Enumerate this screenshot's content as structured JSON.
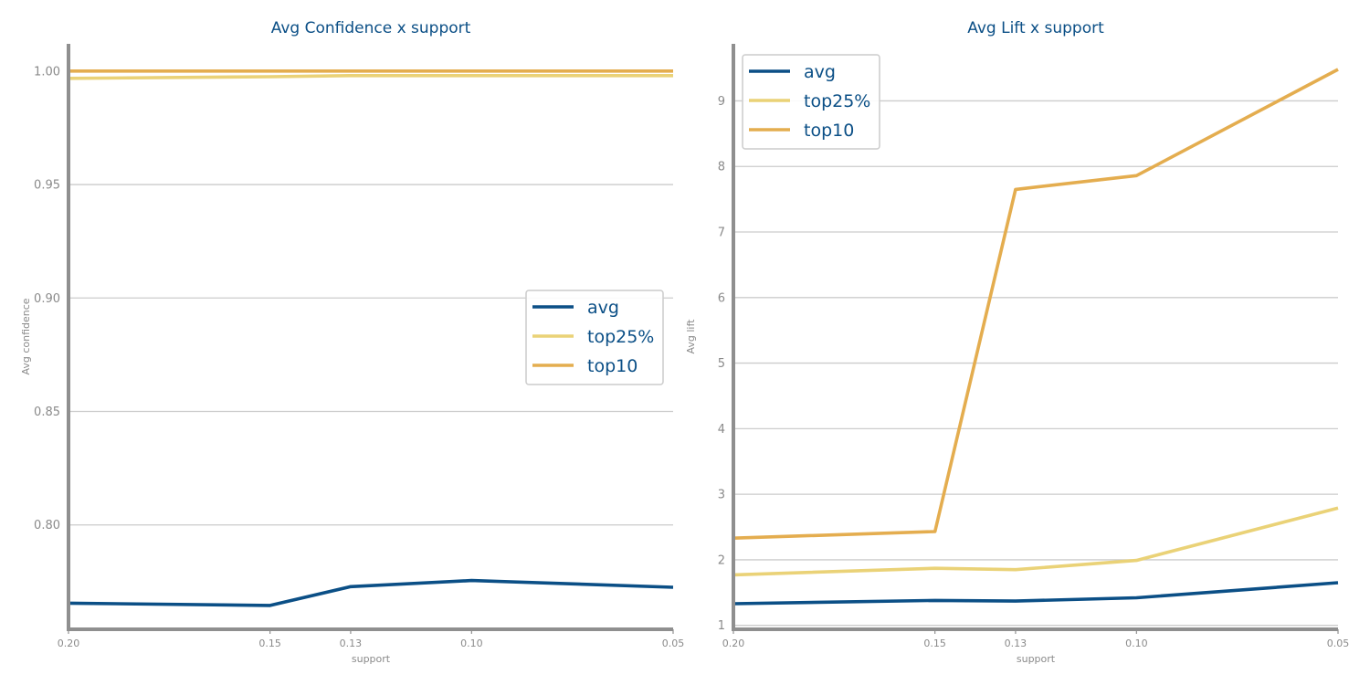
{
  "colors": {
    "avg": "#0b4f86",
    "top25": "#ead277",
    "top10": "#e4ad4f"
  },
  "chart_data": [
    {
      "type": "line",
      "title": "Avg Confidence x support",
      "xlabel": "support",
      "ylabel": "Avg confidence",
      "x": [
        0.2,
        0.15,
        0.13,
        0.1,
        0.05
      ],
      "x_tick_labels": [
        "0.20",
        "0.15",
        "0.13",
        "0.10",
        "0.05"
      ],
      "xlim": [
        0.2,
        0.05
      ],
      "ylim": [
        0.754,
        1.012
      ],
      "y_ticks": [
        0.8,
        0.85,
        0.9,
        0.95,
        1.0
      ],
      "y_tick_labels": [
        "0.80",
        "0.85",
        "0.90",
        "0.95",
        "1.00"
      ],
      "grid": "horizontal",
      "legend": "center-right",
      "series": [
        {
          "name": "avg",
          "key": "avg",
          "values": [
            0.7655,
            0.7645,
            0.7728,
            0.7755,
            0.7725
          ]
        },
        {
          "name": "top25%",
          "key": "top25",
          "values": [
            0.9968,
            0.9975,
            0.998,
            0.998,
            0.998
          ]
        },
        {
          "name": "top10",
          "key": "top10",
          "values": [
            1.0,
            1.0,
            1.0,
            1.0,
            1.0
          ]
        }
      ]
    },
    {
      "type": "line",
      "title": "Avg Lift x support",
      "xlabel": "support",
      "ylabel": "Avg lift",
      "x": [
        0.2,
        0.15,
        0.13,
        0.1,
        0.05
      ],
      "x_tick_labels": [
        "0.20",
        "0.15",
        "0.13",
        "0.10",
        "0.05"
      ],
      "xlim": [
        0.2,
        0.05
      ],
      "ylim": [
        0.94,
        9.87
      ],
      "y_ticks": [
        1,
        2,
        3,
        4,
        5,
        6,
        7,
        8,
        9
      ],
      "y_tick_labels": [
        "1",
        "2",
        "3",
        "4",
        "5",
        "6",
        "7",
        "8",
        "9"
      ],
      "grid": "horizontal",
      "legend": "top-left",
      "series": [
        {
          "name": "avg",
          "key": "avg",
          "values": [
            1.33,
            1.38,
            1.37,
            1.42,
            1.65
          ]
        },
        {
          "name": "top25%",
          "key": "top25",
          "values": [
            1.77,
            1.87,
            1.85,
            1.99,
            2.79
          ]
        },
        {
          "name": "top10",
          "key": "top10",
          "values": [
            2.33,
            2.43,
            7.65,
            7.86,
            9.48
          ]
        }
      ]
    }
  ]
}
